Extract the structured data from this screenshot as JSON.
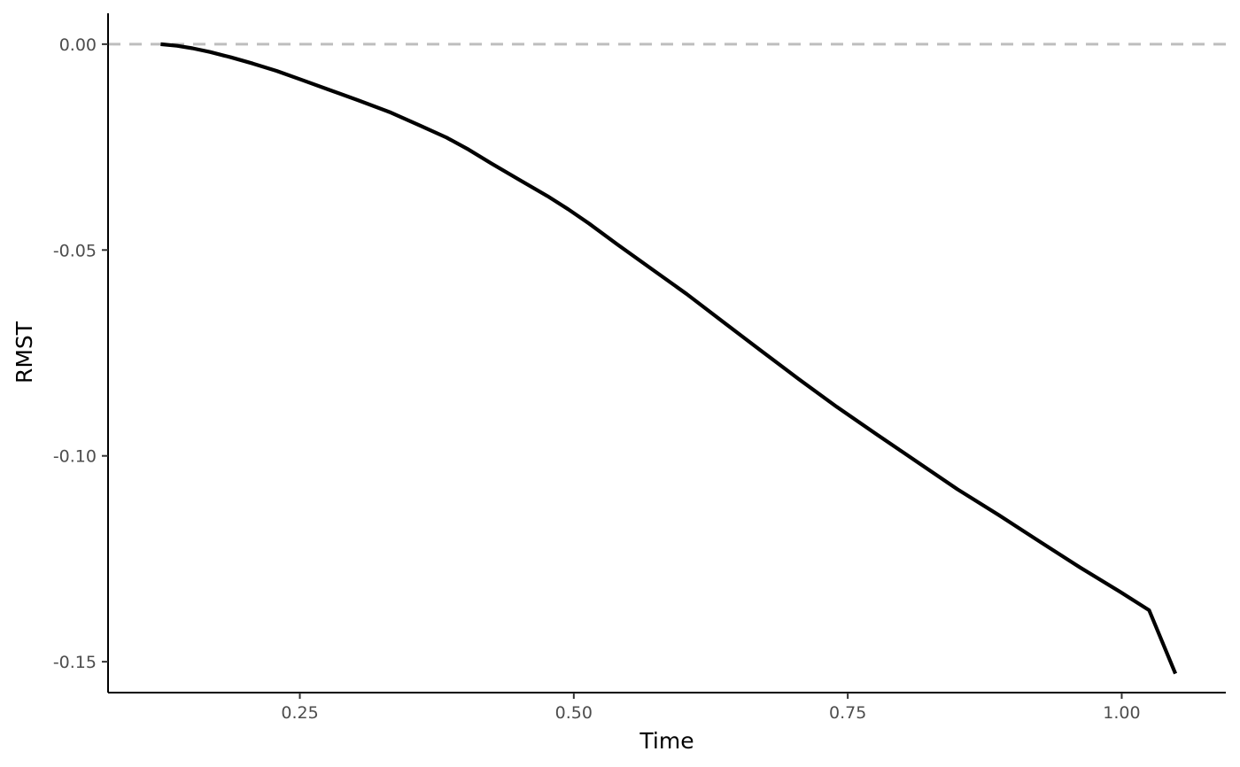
{
  "chart_data": {
    "type": "line",
    "title": "",
    "xlabel": "Time",
    "ylabel": "RMST",
    "xlim": [
      0.075,
      1.095
    ],
    "ylim": [
      -0.1575,
      0.0075
    ],
    "x_ticks": [
      0.25,
      0.5,
      0.75,
      1.0
    ],
    "x_tick_labels": [
      "0.25",
      "0.50",
      "0.75",
      "1.00"
    ],
    "y_ticks": [
      0.0,
      -0.05,
      -0.1,
      -0.15
    ],
    "y_tick_labels": [
      "0.00",
      "-0.05",
      "-0.10",
      "-0.15"
    ],
    "grid": false,
    "reference_line": {
      "y": 0,
      "style": "dashed",
      "color": "#bebebe"
    },
    "series": [
      {
        "color": "#000000",
        "x": [
          0.123,
          0.138,
          0.152,
          0.168,
          0.187,
          0.207,
          0.229,
          0.252,
          0.277,
          0.303,
          0.332,
          0.36,
          0.384,
          0.404,
          0.425,
          0.45,
          0.476,
          0.495,
          0.514,
          0.54,
          0.571,
          0.603,
          0.636,
          0.67,
          0.705,
          0.74,
          0.777,
          0.813,
          0.85,
          0.888,
          0.925,
          0.962,
          0.999,
          1.025,
          1.049
        ],
        "y": [
          0.0,
          -0.0004,
          -0.001,
          -0.0019,
          -0.0032,
          -0.0047,
          -0.0065,
          -0.0087,
          -0.0111,
          -0.0136,
          -0.0165,
          -0.0198,
          -0.0227,
          -0.0256,
          -0.029,
          -0.0329,
          -0.0369,
          -0.0401,
          -0.0436,
          -0.0487,
          -0.0546,
          -0.0607,
          -0.0674,
          -0.0743,
          -0.0813,
          -0.0881,
          -0.0949,
          -0.1014,
          -0.1081,
          -0.1144,
          -0.1208,
          -0.1271,
          -0.1331,
          -0.1375,
          -0.1529
        ]
      }
    ]
  }
}
